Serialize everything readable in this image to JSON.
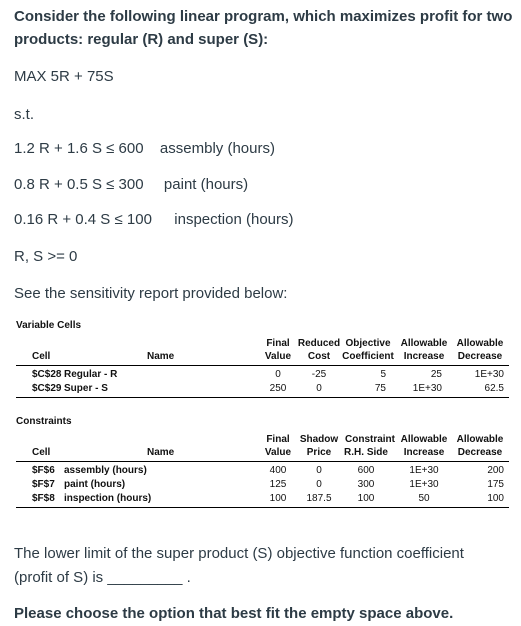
{
  "intro": {
    "line1": "Consider the following linear program, which maximizes profit for two",
    "line2": "products: regular (R) and super (S):"
  },
  "objective": "MAX 5R + 75S",
  "st": "s.t.",
  "constraints_text": [
    {
      "expr": "1.2 R + 1.6 S ≤ 600",
      "label": "assembly (hours)"
    },
    {
      "expr": "0.8 R + 0.5 S ≤ 300",
      "label": "paint (hours)"
    },
    {
      "expr": "0.16 R + 0.4 S ≤ 100",
      "label": "inspection (hours)"
    }
  ],
  "nonneg": "R, S >= 0",
  "see_report": "See the sensitivity report provided below:",
  "variable_cells": {
    "title": "Variable Cells",
    "headers": {
      "final_1": "Final",
      "final_2": "Value",
      "reduced_1": "Reduced",
      "reduced_2": "Cost",
      "objective_1": "Objective",
      "objective_2": "Coefficient",
      "inc_1": "Allowable",
      "inc_2": "Increase",
      "dec_1": "Allowable",
      "dec_2": "Decrease",
      "cell": "Cell",
      "name": "Name"
    },
    "rows": [
      {
        "cell": "$C$28",
        "name": "Regular - R",
        "final": "0",
        "reduced": "-25",
        "coef": "5",
        "inc": "25",
        "dec": "1E+30"
      },
      {
        "cell": "$C$29",
        "name": "Super - S",
        "final": "250",
        "reduced": "0",
        "coef": "75",
        "inc": "1E+30",
        "dec": "62.5"
      }
    ]
  },
  "constraints_table": {
    "title": "Constraints",
    "headers": {
      "final_1": "Final",
      "final_2": "Value",
      "shadow_1": "Shadow",
      "shadow_2": "Price",
      "rhs_1": "Constraint",
      "rhs_2": "R.H. Side",
      "inc_1": "Allowable",
      "inc_2": "Increase",
      "dec_1": "Allowable",
      "dec_2": "Decrease",
      "cell": "Cell",
      "name": "Name"
    },
    "rows": [
      {
        "cell": "$F$6",
        "name": "assembly (hours)",
        "final": "400",
        "shadow": "0",
        "rhs": "600",
        "inc": "1E+30",
        "dec": "200"
      },
      {
        "cell": "$F$7",
        "name": "paint (hours)",
        "final": "125",
        "shadow": "0",
        "rhs": "300",
        "inc": "1E+30",
        "dec": "175"
      },
      {
        "cell": "$F$8",
        "name": "inspection (hours)",
        "final": "100",
        "shadow": "187.5",
        "rhs": "100",
        "inc": "50",
        "dec": "100"
      }
    ]
  },
  "question": {
    "line1": "The lower limit of the super product (S) objective function coefficient",
    "line2": "(profit of S) is _________ ."
  },
  "instruction": "Please choose the option that best fit the empty space above."
}
